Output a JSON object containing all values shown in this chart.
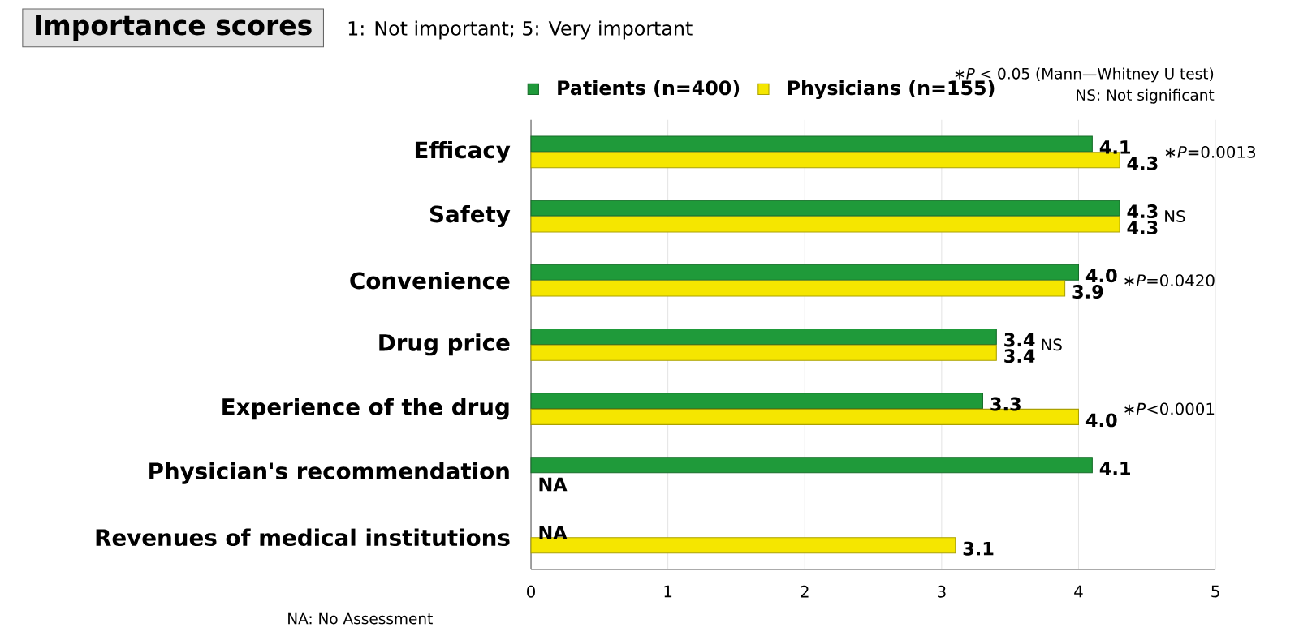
{
  "chart_data": {
    "type": "bar",
    "orientation": "horizontal",
    "title": "Importance scores",
    "subtitle": "1: Not important; 5: Very important",
    "categories": [
      "Efficacy",
      "Safety",
      "Convenience",
      "Drug price",
      "Experience of the drug",
      "Physician's recommendation",
      "Revenues of medical institutions"
    ],
    "series": [
      {
        "name": "**Patients (n=400)**",
        "color": "#1f9a3a",
        "values": [
          4.1,
          4.3,
          4.0,
          3.4,
          3.3,
          4.1,
          null
        ],
        "value_labels": [
          "4.1",
          "4.3",
          "4.0",
          "3.4",
          "3.3",
          "4.1",
          "NA"
        ]
      },
      {
        "name": "**Physicians (n=155)**",
        "color": "#f5e600",
        "values": [
          4.3,
          4.3,
          3.9,
          3.4,
          4.0,
          null,
          3.1
        ],
        "value_labels": [
          "4.3",
          "4.3",
          "3.9",
          "3.4",
          "4.0",
          "NA",
          "3.1"
        ]
      }
    ],
    "xlim": [
      0,
      5
    ],
    "xticks": [
      0,
      1,
      2,
      3,
      4,
      5
    ],
    "grid": "x",
    "legend": "top",
    "annotations": [
      "∗*P* < 0.05 (Mann—Whitney U test)",
      "NS: Not significant",
      "NA: No Assessment",
      {
        "text": "∗*P*=0.0013",
        "x": 4.3,
        "y": "Efficacy"
      },
      {
        "text": "NS",
        "x": 4.3,
        "y": "Safety"
      },
      {
        "text": "∗*P*=0.0420",
        "x": 4.0,
        "y": "Convenience"
      },
      {
        "text": "NS",
        "x": 3.4,
        "y": "Drug price"
      },
      {
        "text": "∗*P*<0.0001",
        "x": 4.0,
        "y": "Experience of the drug"
      }
    ]
  }
}
